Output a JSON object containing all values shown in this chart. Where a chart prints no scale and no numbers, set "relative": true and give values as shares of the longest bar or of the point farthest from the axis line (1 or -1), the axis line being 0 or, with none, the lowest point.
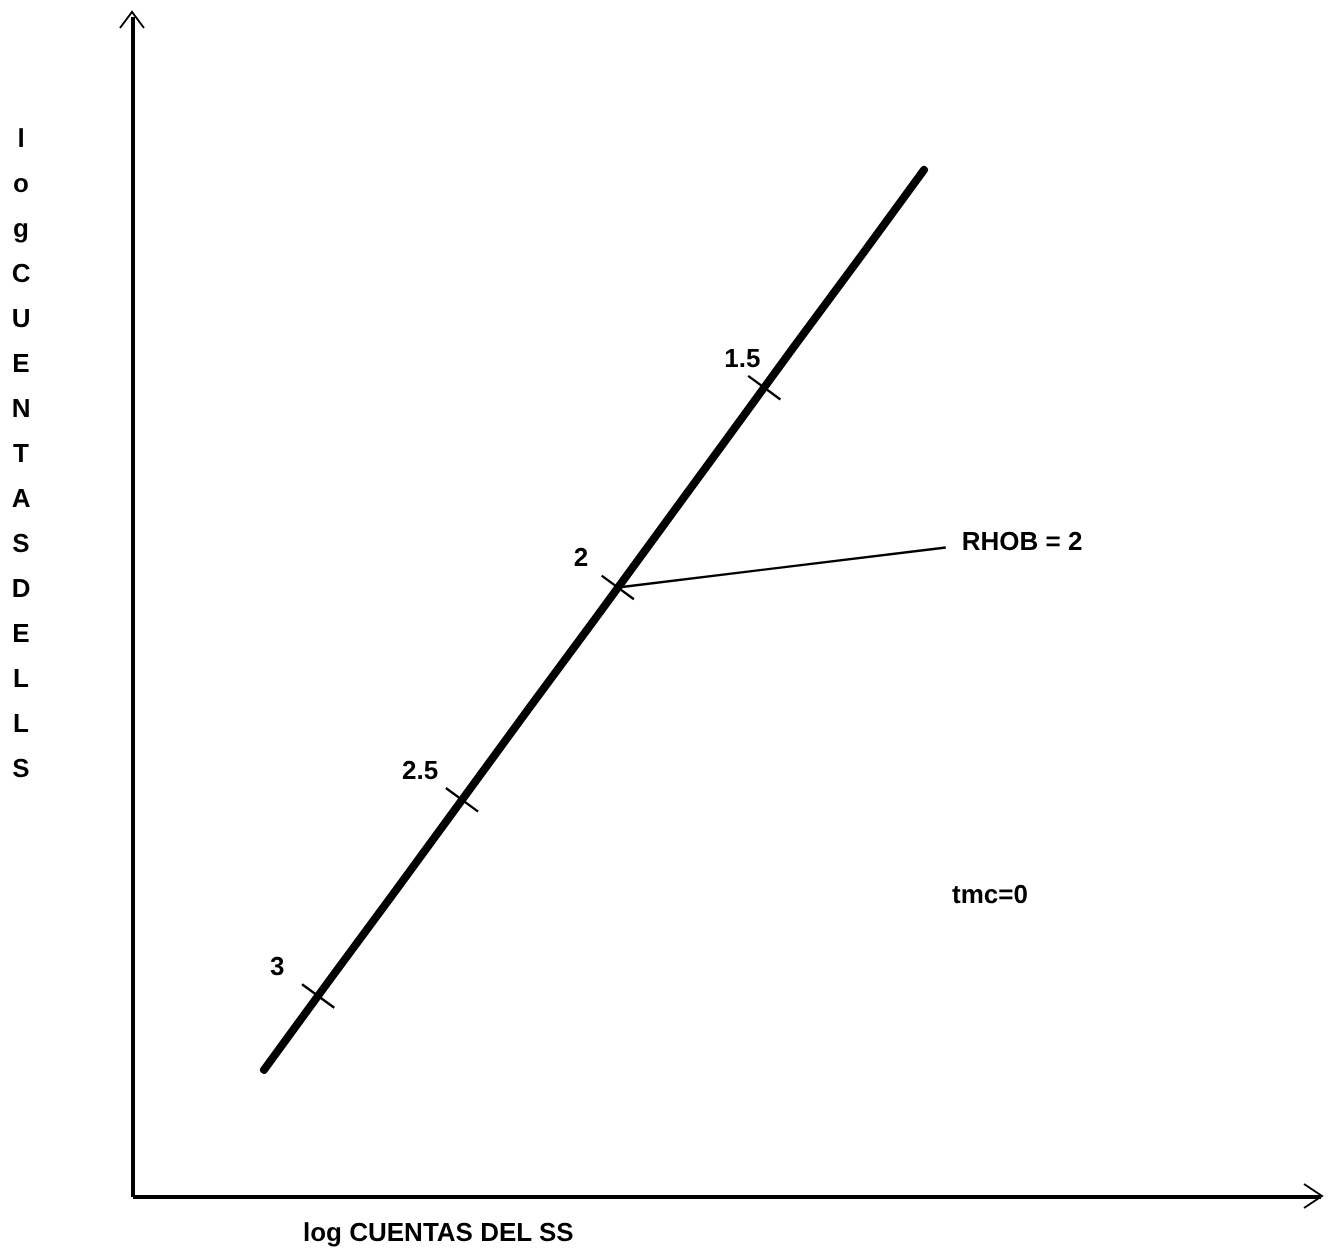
{
  "chart_data": {
    "type": "line",
    "relative": true,
    "xlabel": "log CUENTAS DEL SS",
    "ylabel": "log CUENTAS DEL LS",
    "line_style": "solid",
    "tick_labels": false,
    "categories": [
      null,
      null,
      null,
      null,
      null,
      null,
      null,
      null,
      null,
      null,
      null,
      null,
      null,
      null,
      null,
      null,
      null,
      null,
      null
    ],
    "series": [
      {
        "color": "#000000",
        "values": [
          null,
          null,
          0.123,
          0.211,
          0.298,
          0.386,
          0.474,
          0.561,
          0.649,
          0.737,
          0.825,
          0.912,
          1,
          null,
          null,
          null,
          null,
          null,
          null
        ]
      }
    ],
    "annotations": [
      "3",
      "2.5",
      "2",
      "1.5",
      "RHOB = 2",
      "tmc=0"
    ]
  }
}
